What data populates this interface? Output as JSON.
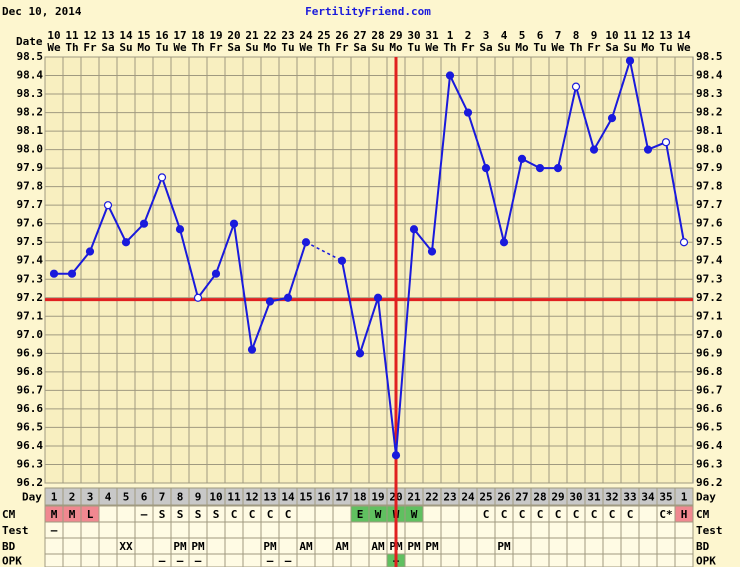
{
  "header": {
    "date": "Dec 10, 2014",
    "site": "FertilityFriend.com"
  },
  "chart_data": {
    "type": "line",
    "date_label": "Date",
    "categories": [
      "10",
      "11",
      "12",
      "13",
      "14",
      "15",
      "16",
      "17",
      "18",
      "19",
      "20",
      "21",
      "22",
      "23",
      "24",
      "25",
      "26",
      "27",
      "28",
      "29",
      "30",
      "31",
      "1",
      "2",
      "3",
      "4",
      "5",
      "6",
      "7",
      "8",
      "9",
      "10",
      "11",
      "12",
      "13",
      "14"
    ],
    "weekdays": [
      "We",
      "Th",
      "Fr",
      "Sa",
      "Su",
      "Mo",
      "Tu",
      "We",
      "Th",
      "Fr",
      "Sa",
      "Su",
      "Mo",
      "Tu",
      "We",
      "Th",
      "Fr",
      "Sa",
      "Su",
      "Mo",
      "Tu",
      "We",
      "Th",
      "Fr",
      "Sa",
      "Su",
      "Mo",
      "Tu",
      "We",
      "Th",
      "Fr",
      "Sa",
      "Su",
      "Mo",
      "Tu",
      "We"
    ],
    "series": [
      {
        "color": "#1a1adc",
        "values": [
          97.33,
          97.33,
          97.45,
          97.7,
          97.5,
          97.6,
          97.85,
          97.57,
          97.2,
          97.33,
          97.6,
          96.92,
          97.18,
          97.2,
          97.5,
          null,
          97.4,
          96.9,
          97.2,
          96.35,
          97.57,
          97.45,
          98.4,
          98.2,
          97.9,
          97.5,
          97.95,
          97.9,
          97.9,
          98.34,
          98.0,
          98.17,
          98.48,
          98.0,
          98.04,
          97.5
        ],
        "hollow": [
          false,
          false,
          false,
          true,
          false,
          false,
          true,
          false,
          true,
          false,
          false,
          false,
          false,
          false,
          false,
          false,
          false,
          false,
          false,
          false,
          false,
          false,
          false,
          false,
          false,
          false,
          false,
          false,
          false,
          true,
          false,
          false,
          false,
          false,
          true,
          true
        ]
      }
    ],
    "ylim": [
      96.2,
      98.5
    ],
    "yticks": [
      96.2,
      96.3,
      96.4,
      96.5,
      96.6,
      96.7,
      96.8,
      96.9,
      {
        "value": 97.0,
        "label": "97.0"
      },
      97.1,
      97.2,
      97.3,
      97.4,
      97.5,
      97.6,
      97.7,
      97.8,
      97.9,
      {
        "value": 98.0,
        "label": "98.0"
      },
      98.1,
      98.2,
      98.3,
      98.4,
      98.5
    ],
    "grid": true,
    "coverline": 97.19,
    "ovulation_day": 20,
    "reference_color": "#e02020",
    "rows": [
      {
        "label": "Day",
        "cells": [
          "1",
          "2",
          "3",
          "4",
          "5",
          "6",
          "7",
          "8",
          "9",
          "10",
          "11",
          "12",
          "13",
          "14",
          "15",
          "16",
          "17",
          "18",
          "19",
          "20",
          "21",
          "22",
          "23",
          "24",
          "25",
          "26",
          "27",
          "28",
          "29",
          "30",
          "31",
          "32",
          "33",
          "34",
          "35",
          "1"
        ]
      },
      {
        "label": "CM",
        "cells": [
          "M",
          "M",
          "L",
          null,
          null,
          "–",
          "S",
          "S",
          "S",
          "S",
          "C",
          "C",
          "C",
          "C",
          null,
          null,
          null,
          "E",
          "W",
          "W",
          "W",
          null,
          null,
          null,
          "C",
          "C",
          "C",
          "C",
          "C",
          "C",
          "C",
          "C",
          "C",
          null,
          "C*",
          "H"
        ],
        "colors": [
          "#f08890",
          "#f08890",
          "#f08890",
          null,
          null,
          null,
          null,
          null,
          null,
          null,
          null,
          null,
          null,
          null,
          null,
          null,
          null,
          "#60c060",
          "#60c060",
          "#60c060",
          "#60c060",
          null,
          null,
          null,
          null,
          null,
          null,
          null,
          null,
          null,
          null,
          null,
          null,
          null,
          null,
          "#f08890"
        ]
      },
      {
        "label": "Test",
        "cells": [
          "–",
          null,
          null,
          null,
          null,
          null,
          null,
          null,
          null,
          null,
          null,
          null,
          null,
          null,
          null,
          null,
          null,
          null,
          null,
          null,
          null,
          null,
          null,
          null,
          null,
          null,
          null,
          null,
          null,
          null,
          null,
          null,
          null,
          null,
          null,
          null
        ]
      },
      {
        "label": "BD",
        "cells": [
          null,
          null,
          null,
          null,
          "XX",
          null,
          null,
          "PM",
          "PM",
          null,
          null,
          null,
          "PM",
          null,
          "AM",
          null,
          "AM",
          null,
          "AM",
          "PM",
          "PM",
          "PM",
          null,
          null,
          null,
          "PM",
          null,
          null,
          null,
          null,
          null,
          null,
          null,
          null,
          null,
          null
        ]
      },
      {
        "label": "OPK",
        "cells": [
          null,
          null,
          null,
          null,
          null,
          null,
          "–",
          "–",
          "–",
          null,
          null,
          null,
          "–",
          "–",
          null,
          null,
          null,
          null,
          null,
          "+",
          null,
          null,
          null,
          null,
          null,
          null,
          null,
          null,
          null,
          null,
          null,
          null,
          null,
          null,
          null,
          null
        ],
        "colors": [
          null,
          null,
          null,
          null,
          null,
          null,
          null,
          null,
          null,
          null,
          null,
          null,
          null,
          null,
          null,
          null,
          null,
          null,
          null,
          "#60c060",
          null,
          null,
          null,
          null,
          null,
          null,
          null,
          null,
          null,
          null,
          null,
          null,
          null,
          null,
          null,
          null
        ]
      }
    ]
  }
}
